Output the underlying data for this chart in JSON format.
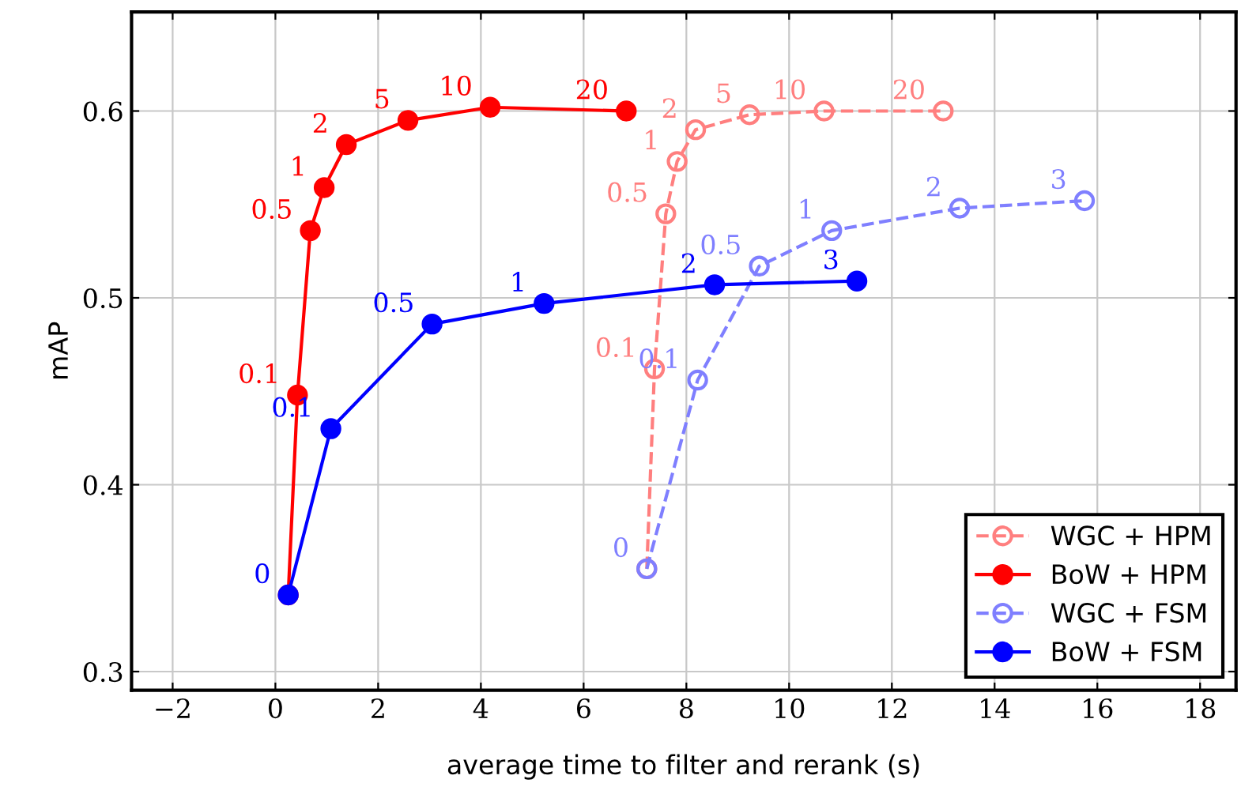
{
  "chart_data": {
    "type": "line",
    "xlabel": "average time to filter and rerank (s)",
    "ylabel": "mAP",
    "xlim": [
      -2.8,
      18.7
    ],
    "ylim": [
      0.29,
      0.653
    ],
    "xticks": [
      -2,
      0,
      2,
      4,
      6,
      8,
      10,
      12,
      14,
      16,
      18
    ],
    "yticks": [
      0.3,
      0.4,
      0.5,
      0.6
    ],
    "grid": true,
    "legend": "bottom right",
    "marker": "circle",
    "series": [
      {
        "name": "WGC + HPM",
        "color": "#ff7f7f",
        "line_style": "dashed",
        "x": [
          7.23,
          7.38,
          7.6,
          7.82,
          8.18,
          9.23,
          10.68,
          13.0
        ],
        "values": [
          0.355,
          0.462,
          0.545,
          0.573,
          0.59,
          0.598,
          0.6,
          0.6
        ]
      },
      {
        "name": "BoW + HPM",
        "color": "#ff0000",
        "line_style": "solid",
        "x": [
          0.25,
          0.43,
          0.68,
          0.95,
          1.38,
          2.58,
          4.18,
          6.83
        ],
        "values": [
          0.341,
          0.448,
          0.536,
          0.559,
          0.582,
          0.595,
          0.602,
          0.6
        ]
      },
      {
        "name": "WGC + FSM",
        "color": "#7f7fff",
        "line_style": "dashed",
        "x": [
          7.23,
          8.22,
          9.42,
          10.83,
          13.32,
          15.75
        ],
        "values": [
          0.355,
          0.456,
          0.517,
          0.536,
          0.548,
          0.552
        ]
      },
      {
        "name": "BoW + FSM",
        "color": "#0000ff",
        "line_style": "solid",
        "x": [
          0.25,
          1.08,
          3.05,
          5.23,
          8.55,
          11.32
        ],
        "values": [
          0.341,
          0.43,
          0.486,
          0.497,
          0.507,
          0.509
        ]
      }
    ],
    "annotations": [
      {
        "text": "0.1",
        "x": 7.38,
        "y": 0.462
      },
      {
        "text": "0.5",
        "x": 7.6,
        "y": 0.545
      },
      {
        "text": "1",
        "x": 7.82,
        "y": 0.573
      },
      {
        "text": "2",
        "x": 8.18,
        "y": 0.59
      },
      {
        "text": "5",
        "x": 9.23,
        "y": 0.598
      },
      {
        "text": "10",
        "x": 10.68,
        "y": 0.6
      },
      {
        "text": "20",
        "x": 13.0,
        "y": 0.6
      },
      {
        "text": "0.1",
        "x": 0.43,
        "y": 0.448
      },
      {
        "text": "0.5",
        "x": 0.68,
        "y": 0.536
      },
      {
        "text": "1",
        "x": 0.95,
        "y": 0.559
      },
      {
        "text": "2",
        "x": 1.38,
        "y": 0.582
      },
      {
        "text": "5",
        "x": 2.58,
        "y": 0.595
      },
      {
        "text": "10",
        "x": 4.18,
        "y": 0.602
      },
      {
        "text": "20",
        "x": 6.83,
        "y": 0.6
      },
      {
        "text": "0",
        "x": 7.23,
        "y": 0.355
      },
      {
        "text": "0.1",
        "x": 8.22,
        "y": 0.456
      },
      {
        "text": "0.5",
        "x": 9.42,
        "y": 0.517
      },
      {
        "text": "1",
        "x": 10.83,
        "y": 0.536
      },
      {
        "text": "2",
        "x": 13.32,
        "y": 0.548
      },
      {
        "text": "3",
        "x": 15.75,
        "y": 0.552
      },
      {
        "text": "0",
        "x": 0.25,
        "y": 0.341
      },
      {
        "text": "0.1",
        "x": 1.08,
        "y": 0.43
      },
      {
        "text": "0.5",
        "x": 3.05,
        "y": 0.486
      },
      {
        "text": "1",
        "x": 5.23,
        "y": 0.497
      },
      {
        "text": "2",
        "x": 8.55,
        "y": 0.507
      },
      {
        "text": "3",
        "x": 11.32,
        "y": 0.509
      }
    ]
  }
}
